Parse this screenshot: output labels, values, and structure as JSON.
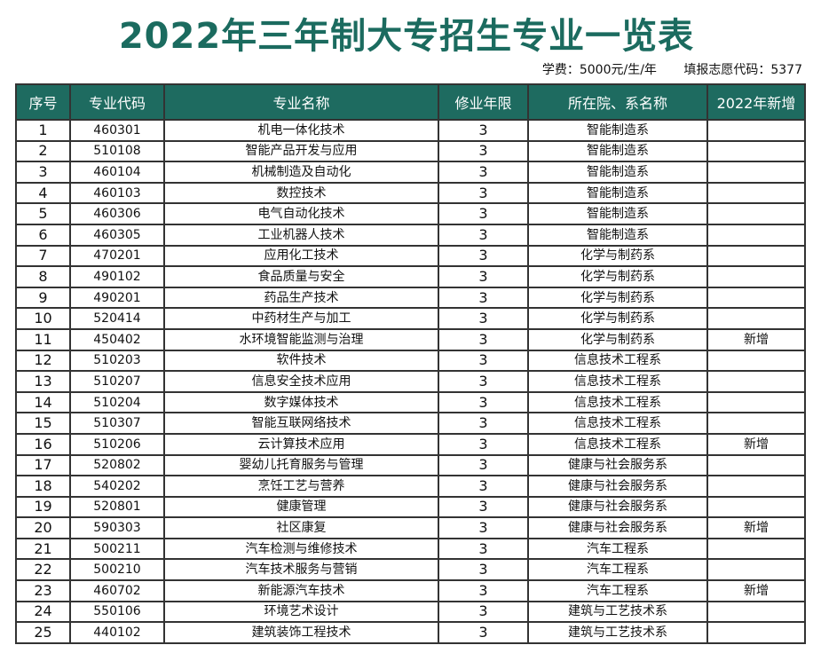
{
  "title": "2022年三年制大专招生专业一览表",
  "tuition": "学费：5000元/生/年",
  "application_code": "填报志愿代码：5377",
  "colors": {
    "title": "#1b6b5f",
    "header_bg": "#1e6b60"
  },
  "headers": [
    "序号",
    "专业代码",
    "专业名称",
    "修业年限",
    "所在院、系名称",
    "2022年新增"
  ],
  "rows": [
    [
      "1",
      "460301",
      "机电一体化技术",
      "3",
      "智能制造系",
      ""
    ],
    [
      "2",
      "510108",
      "智能产品开发与应用",
      "3",
      "智能制造系",
      ""
    ],
    [
      "3",
      "460104",
      "机械制造及自动化",
      "3",
      "智能制造系",
      ""
    ],
    [
      "4",
      "460103",
      "数控技术",
      "3",
      "智能制造系",
      ""
    ],
    [
      "5",
      "460306",
      "电气自动化技术",
      "3",
      "智能制造系",
      ""
    ],
    [
      "6",
      "460305",
      "工业机器人技术",
      "3",
      "智能制造系",
      ""
    ],
    [
      "7",
      "470201",
      "应用化工技术",
      "3",
      "化学与制药系",
      ""
    ],
    [
      "8",
      "490102",
      "食品质量与安全",
      "3",
      "化学与制药系",
      ""
    ],
    [
      "9",
      "490201",
      "药品生产技术",
      "3",
      "化学与制药系",
      ""
    ],
    [
      "10",
      "520414",
      "中药材生产与加工",
      "3",
      "化学与制药系",
      ""
    ],
    [
      "11",
      "450402",
      "水环境智能监测与治理",
      "3",
      "化学与制药系",
      "新增"
    ],
    [
      "12",
      "510203",
      "软件技术",
      "3",
      "信息技术工程系",
      ""
    ],
    [
      "13",
      "510207",
      "信息安全技术应用",
      "3",
      "信息技术工程系",
      ""
    ],
    [
      "14",
      "510204",
      "数字媒体技术",
      "3",
      "信息技术工程系",
      ""
    ],
    [
      "15",
      "510307",
      "智能互联网络技术",
      "3",
      "信息技术工程系",
      ""
    ],
    [
      "16",
      "510206",
      "云计算技术应用",
      "3",
      "信息技术工程系",
      "新增"
    ],
    [
      "17",
      "520802",
      "婴幼儿托育服务与管理",
      "3",
      "健康与社会服务系",
      ""
    ],
    [
      "18",
      "540202",
      "烹饪工艺与营养",
      "3",
      "健康与社会服务系",
      ""
    ],
    [
      "19",
      "520801",
      "健康管理",
      "3",
      "健康与社会服务系",
      ""
    ],
    [
      "20",
      "590303",
      "社区康复",
      "3",
      "健康与社会服务系",
      "新增"
    ],
    [
      "21",
      "500211",
      "汽车检测与维修技术",
      "3",
      "汽车工程系",
      ""
    ],
    [
      "22",
      "500210",
      "汽车技术服务与营销",
      "3",
      "汽车工程系",
      ""
    ],
    [
      "23",
      "460702",
      "新能源汽车技术",
      "3",
      "汽车工程系",
      "新增"
    ],
    [
      "24",
      "550106",
      "环境艺术设计",
      "3",
      "建筑与工艺技术系",
      ""
    ],
    [
      "25",
      "440102",
      "建筑装饰工程技术",
      "3",
      "建筑与工艺技术系",
      ""
    ]
  ]
}
